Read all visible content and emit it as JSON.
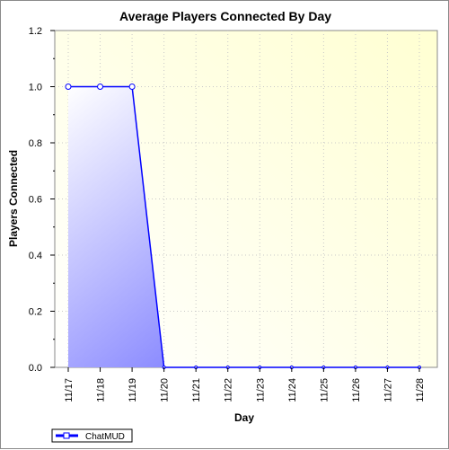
{
  "chart_data": {
    "type": "area",
    "title": "Average Players Connected By Day",
    "xlabel": "Day",
    "ylabel": "Players Connected",
    "categories": [
      "11/17",
      "11/18",
      "11/19",
      "11/20",
      "11/21",
      "11/22",
      "11/23",
      "11/24",
      "11/25",
      "11/26",
      "11/27",
      "11/28"
    ],
    "series": [
      {
        "name": "ChatMUD",
        "values": [
          1.0,
          1.0,
          1.0,
          0,
          0,
          0,
          0,
          0,
          0,
          0,
          0,
          0
        ],
        "color": "#0000ff"
      }
    ],
    "ylim": [
      0,
      1.2
    ],
    "yticks": [
      "0.0",
      "0.2",
      "0.4",
      "0.6",
      "0.8",
      "1.0",
      "1.2"
    ],
    "grid": true,
    "legend_position": "bottom-left"
  }
}
